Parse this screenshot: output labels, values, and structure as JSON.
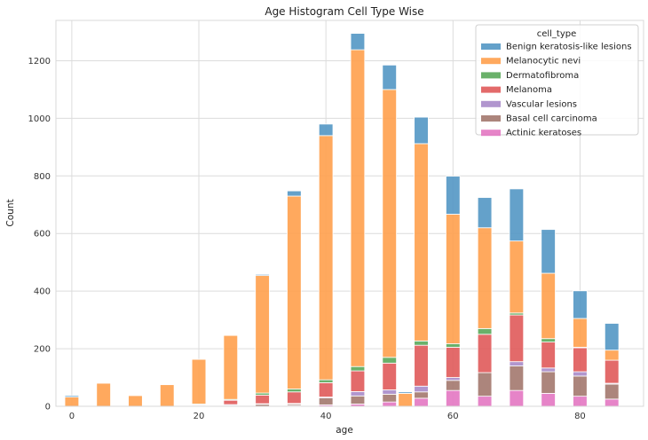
{
  "chart_data": {
    "type": "bar",
    "stacked": true,
    "title": "Age Histogram Cell Type Wise",
    "xlabel": "age",
    "ylabel": "Count",
    "xlim": [
      -2.5,
      90
    ],
    "ylim": [
      0,
      1340
    ],
    "x_ticks": [
      0,
      20,
      40,
      60,
      80
    ],
    "y_ticks": [
      0,
      200,
      400,
      600,
      800,
      1000,
      1200
    ],
    "grid": true,
    "bin_width": 2.2,
    "x": [
      0,
      5,
      10,
      15,
      20,
      25,
      30,
      35,
      40,
      45,
      50,
      52.5,
      55,
      60,
      65,
      70,
      75,
      80,
      85
    ],
    "legend": {
      "title": "cell_type",
      "position": "top-right"
    },
    "series": [
      {
        "name": "Actinic keratoses",
        "color": "#e377c2",
        "values": [
          0,
          0,
          0,
          0,
          0,
          0,
          0,
          3,
          5,
          8,
          15,
          0,
          28,
          55,
          35,
          55,
          45,
          35,
          25
        ]
      },
      {
        "name": "Basal cell carcinoma",
        "color": "#a3786e",
        "values": [
          0,
          0,
          0,
          0,
          2,
          3,
          7,
          5,
          24,
          28,
          27,
          0,
          22,
          35,
          82,
          85,
          75,
          70,
          52
        ]
      },
      {
        "name": "Vascular lesions",
        "color": "#a98bc9",
        "values": [
          0,
          0,
          0,
          0,
          0,
          3,
          2,
          2,
          3,
          15,
          15,
          0,
          20,
          10,
          0,
          15,
          13,
          15,
          3
        ]
      },
      {
        "name": "Melanoma",
        "color": "#e05a5a",
        "values": [
          0,
          0,
          0,
          0,
          3,
          15,
          30,
          40,
          50,
          72,
          93,
          0,
          142,
          105,
          133,
          162,
          90,
          83,
          80
        ]
      },
      {
        "name": "Dermatofibroma",
        "color": "#5aa85a",
        "values": [
          0,
          0,
          0,
          0,
          3,
          3,
          7,
          10,
          10,
          15,
          20,
          0,
          15,
          12,
          20,
          7,
          12,
          2,
          0
        ]
      },
      {
        "name": "Melanocytic nevi",
        "color": "#ffa04d",
        "values": [
          32,
          80,
          37,
          75,
          155,
          222,
          408,
          670,
          848,
          1100,
          930,
          45,
          685,
          450,
          350,
          250,
          227,
          100,
          35
        ]
      },
      {
        "name": "Benign keratosis-like lesions",
        "color": "#5397c4",
        "values": [
          5,
          0,
          0,
          0,
          0,
          0,
          4,
          18,
          40,
          57,
          85,
          5,
          92,
          132,
          105,
          181,
          152,
          96,
          93
        ]
      }
    ]
  }
}
